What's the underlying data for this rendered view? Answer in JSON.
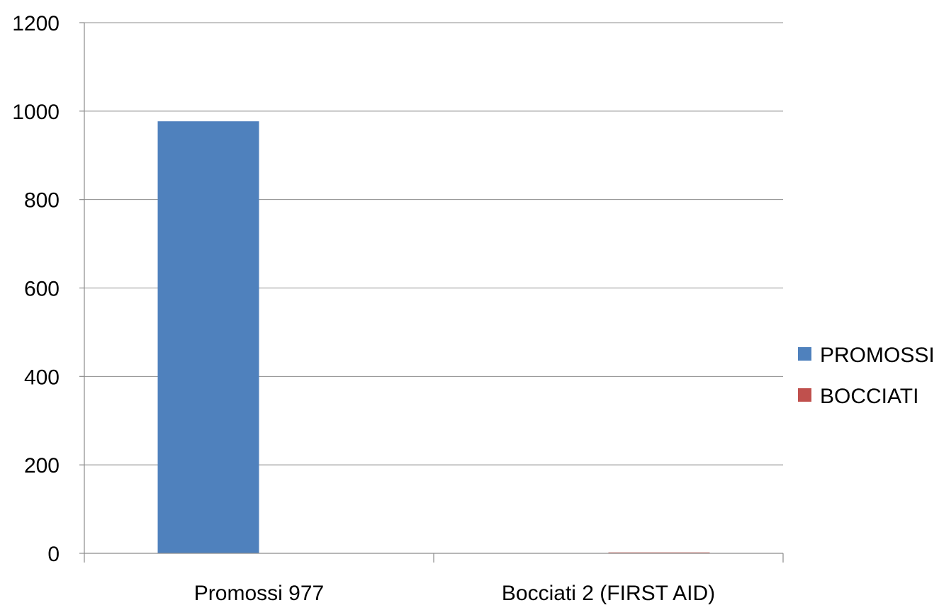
{
  "chart_data": {
    "type": "bar",
    "categories": [
      "Promossi  977",
      "Bocciati 2 (FIRST AID)"
    ],
    "series": [
      {
        "name": "PROMOSSI",
        "color": "#4f81bd",
        "values": [
          977,
          0
        ]
      },
      {
        "name": "BOCCIATI",
        "color": "#c0504d",
        "values": [
          0,
          2
        ]
      }
    ],
    "ylim": [
      0,
      1200
    ],
    "yticks": [
      0,
      200,
      400,
      600,
      800,
      1000,
      1200
    ],
    "grid": true,
    "legend_position": "right",
    "title": "",
    "xlabel": "",
    "ylabel": ""
  }
}
